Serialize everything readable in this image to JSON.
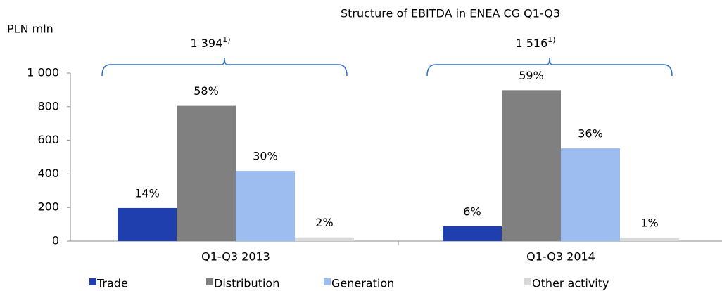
{
  "chart_data": {
    "type": "bar",
    "title": "Structure of EBITDA in ENEA CG  Q1-Q3",
    "y_label": "PLN mln",
    "categories": [
      "Q1-Q3 2013",
      "Q1-Q3 2014"
    ],
    "series": [
      {
        "name": "Trade",
        "color": "#1f3fae",
        "values": [
          197,
          88
        ],
        "share_labels": [
          "14%",
          "6%"
        ]
      },
      {
        "name": "Distribution",
        "color": "#808080",
        "values": [
          805,
          898
        ],
        "share_labels": [
          "58%",
          "59%"
        ]
      },
      {
        "name": "Generation",
        "color": "#9dbcf0",
        "values": [
          418,
          552
        ],
        "share_labels": [
          "30%",
          "36%"
        ]
      },
      {
        "name": "Other activity",
        "color": "#d9d9d9",
        "values": [
          22,
          20
        ],
        "share_labels": [
          "2%",
          "1%"
        ]
      }
    ],
    "totals": [
      {
        "label": "1 394",
        "note": "1)"
      },
      {
        "label": "1 516",
        "note": "1)"
      }
    ],
    "ylim": [
      0,
      1000
    ],
    "yticks": [
      0,
      200,
      400,
      600,
      800,
      {
        "value": 1000,
        "label": "1 000"
      }
    ]
  }
}
